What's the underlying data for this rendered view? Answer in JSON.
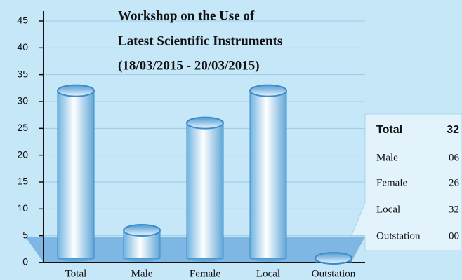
{
  "chart_data": {
    "type": "bar",
    "title": [
      "Workshop on the Use of",
      "Latest Scientific Instruments",
      "(18/03/2015 - 20/03/2015)"
    ],
    "categories": [
      "Total",
      "Male",
      "Female",
      "Local",
      "Outstation"
    ],
    "values": [
      32,
      6,
      26,
      32,
      0
    ],
    "value_labels": [
      "32",
      "06",
      "26",
      "32",
      "00"
    ],
    "color": "#9fd2f0",
    "ylim": [
      0,
      45
    ],
    "yticks": [
      0,
      5,
      10,
      15,
      20,
      25,
      30,
      35,
      40,
      45
    ],
    "grid": true
  }
}
